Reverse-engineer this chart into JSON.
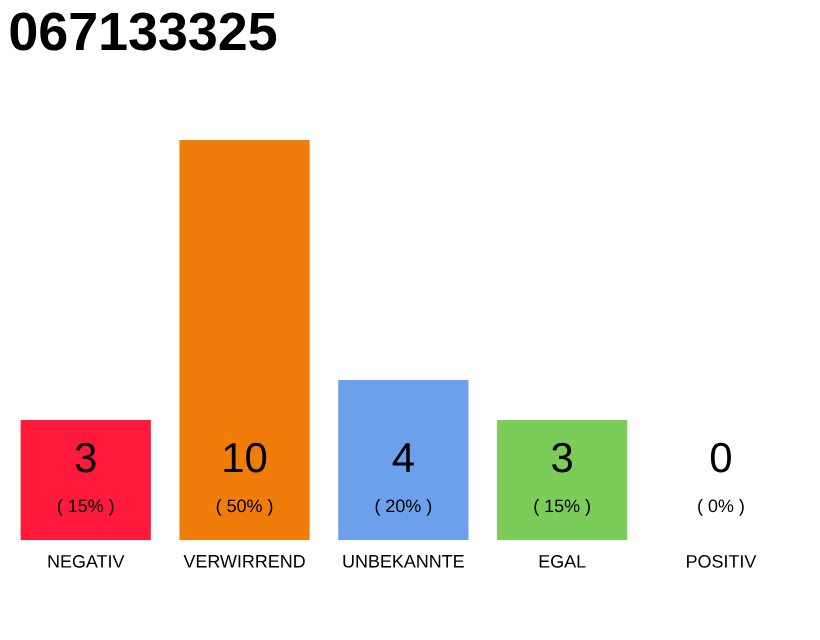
{
  "chart_data": {
    "type": "bar",
    "title": "067133325",
    "categories": [
      "NEGATIV",
      "VERWIRREND",
      "UNBEKANNTE",
      "EGAL",
      "POSITIV"
    ],
    "values": [
      3,
      10,
      4,
      3,
      0
    ],
    "colors": [
      "#ff1a3c",
      "#f07d0a",
      "#6aa0ec",
      "#7ccc5a",
      "#dddddd"
    ],
    "data_labels": true,
    "annotations": [
      "( 15% )",
      "( 50% )",
      "( 20% )",
      "( 15% )",
      "( 0% )"
    ]
  }
}
